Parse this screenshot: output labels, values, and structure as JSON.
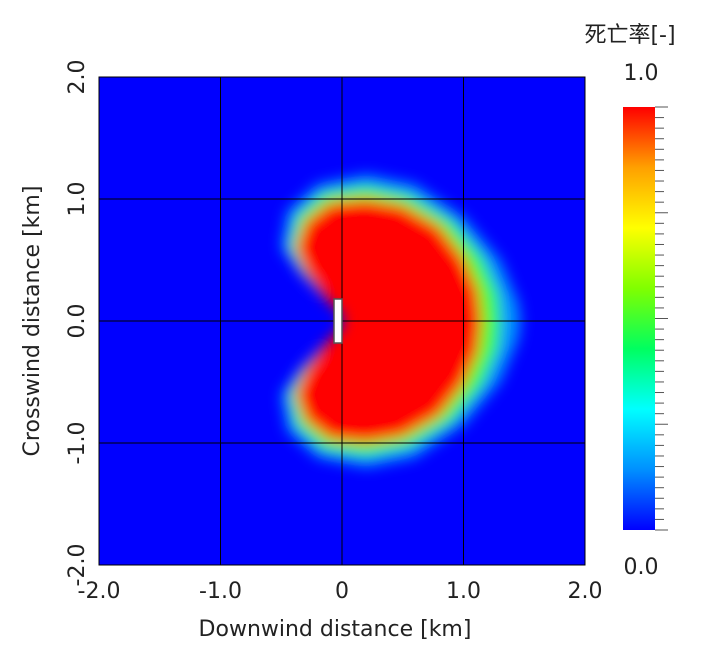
{
  "chart_data": {
    "type": "contour",
    "xlabel": "Downwind distance [km]",
    "ylabel": "Crosswind distance [km]",
    "xlim": [
      -2,
      2
    ],
    "ylim": [
      -2,
      2
    ],
    "xticks": [
      {
        "value": -2,
        "label": "-2.0"
      },
      {
        "value": -1,
        "label": "-1.0"
      },
      0,
      {
        "value": 1,
        "label": "1.0"
      },
      {
        "value": 2,
        "label": "2.0"
      }
    ],
    "yticks": [
      {
        "value": -2,
        "label": "-2.0"
      },
      {
        "value": -1,
        "label": "-1.0"
      },
      {
        "value": 0,
        "label": "0.0"
      },
      {
        "value": 1,
        "label": "1.0"
      },
      {
        "value": 2,
        "label": "2.0"
      }
    ],
    "grid": true,
    "colorbar": {
      "title": "死亡率[-]",
      "clim": [
        0,
        1
      ],
      "ticks": [
        {
          "value": 0,
          "label": "0.0"
        },
        {
          "value": 1,
          "label": "1.0"
        }
      ]
    },
    "colormap": [
      "#0000ff",
      "#0090ff",
      "#00ffff",
      "#00ff60",
      "#80ff00",
      "#ffff00",
      "#ffa000",
      "#ff0000"
    ],
    "contours": [
      {
        "level": 0.15,
        "points": [
          [
            0.1,
            0
          ],
          [
            -0.1,
            0.15
          ],
          [
            -0.35,
            0.4
          ],
          [
            -0.5,
            0.6
          ],
          [
            -0.45,
            0.9
          ],
          [
            -0.2,
            1.12
          ],
          [
            0.2,
            1.2
          ],
          [
            0.6,
            1.12
          ],
          [
            1.0,
            0.85
          ],
          [
            1.3,
            0.5
          ],
          [
            1.45,
            0.15
          ],
          [
            1.47,
            0
          ],
          [
            1.45,
            -0.15
          ],
          [
            1.3,
            -0.5
          ],
          [
            1.0,
            -0.85
          ],
          [
            0.6,
            -1.12
          ],
          [
            0.2,
            -1.2
          ],
          [
            -0.2,
            -1.12
          ],
          [
            -0.45,
            -0.9
          ],
          [
            -0.5,
            -0.6
          ],
          [
            -0.35,
            -0.4
          ],
          [
            -0.1,
            -0.15
          ]
        ]
      },
      {
        "level": 0.5,
        "points": [
          [
            0.05,
            0
          ],
          [
            -0.12,
            0.18
          ],
          [
            -0.32,
            0.4
          ],
          [
            -0.43,
            0.6
          ],
          [
            -0.37,
            0.86
          ],
          [
            -0.15,
            1.05
          ],
          [
            0.2,
            1.1
          ],
          [
            0.55,
            1.03
          ],
          [
            0.9,
            0.82
          ],
          [
            1.15,
            0.52
          ],
          [
            1.28,
            0.22
          ],
          [
            1.3,
            0
          ],
          [
            1.28,
            -0.22
          ],
          [
            1.15,
            -0.52
          ],
          [
            0.9,
            -0.82
          ],
          [
            0.55,
            -1.03
          ],
          [
            0.2,
            -1.1
          ],
          [
            -0.15,
            -1.05
          ],
          [
            -0.37,
            -0.86
          ],
          [
            -0.43,
            -0.6
          ],
          [
            -0.32,
            -0.4
          ],
          [
            -0.12,
            -0.18
          ]
        ]
      },
      {
        "level": 1,
        "points": [
          [
            0,
            0.05
          ],
          [
            -0.15,
            0.2
          ],
          [
            -0.3,
            0.4
          ],
          [
            -0.38,
            0.6
          ],
          [
            -0.3,
            0.82
          ],
          [
            -0.1,
            0.97
          ],
          [
            0.2,
            1.0
          ],
          [
            0.5,
            0.95
          ],
          [
            0.8,
            0.78
          ],
          [
            1.0,
            0.52
          ],
          [
            1.12,
            0.25
          ],
          [
            1.15,
            0
          ],
          [
            1.12,
            -0.25
          ],
          [
            1.0,
            -0.52
          ],
          [
            0.8,
            -0.78
          ],
          [
            0.5,
            -0.95
          ],
          [
            0.2,
            -1.0
          ],
          [
            -0.1,
            -0.97
          ],
          [
            -0.3,
            -0.82
          ],
          [
            -0.38,
            -0.6
          ],
          [
            -0.3,
            -0.4
          ],
          [
            -0.15,
            -0.2
          ],
          [
            0,
            -0.05
          ]
        ]
      }
    ]
  }
}
